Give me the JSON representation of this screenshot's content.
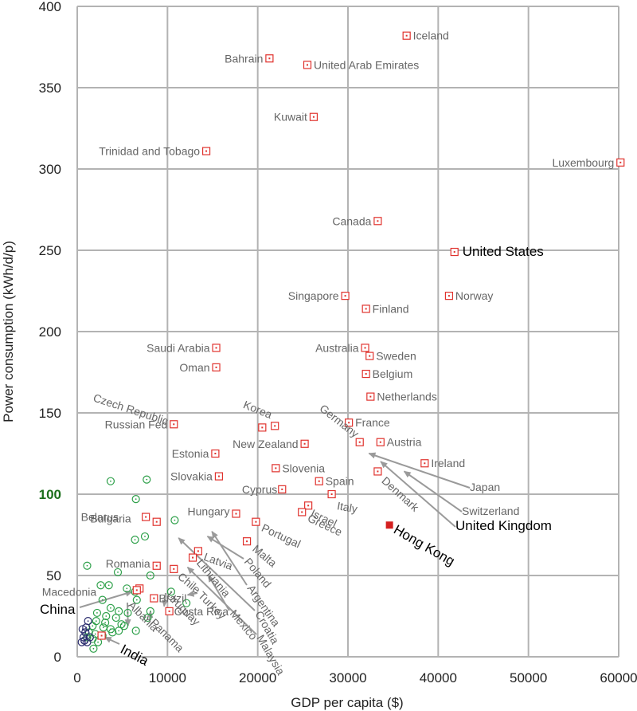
{
  "chart_data": {
    "type": "scatter",
    "xlabel": "GDP per capita ($)",
    "ylabel": "Power consumption (kWh/d/p)",
    "xlim": [
      0,
      60000
    ],
    "ylim": [
      0,
      400
    ],
    "xticks": [
      "0",
      "10000",
      "20000",
      "30000",
      "40000",
      "50000",
      "60000"
    ],
    "yticks": [
      "0",
      "50",
      "100",
      "150",
      "200",
      "250",
      "300",
      "350",
      "400"
    ],
    "highlighted_ytick": "100",
    "grid": true,
    "colors": {
      "labeled_marker": "#e0322d",
      "highlight_marker": "#d42020",
      "green_marker": "#2ea04a",
      "navy_marker": "#2b2d6e",
      "grid": "#b3b3b3",
      "leader": "#9a9a9a",
      "highlight_tick": "#1b6e1b"
    },
    "labeled_points": [
      {
        "name": "Iceland",
        "x": 36500,
        "y": 382
      },
      {
        "name": "Bahrain",
        "x": 21300,
        "y": 368
      },
      {
        "name": "United Arab Emirates",
        "x": 25500,
        "y": 364
      },
      {
        "name": "Kuwait",
        "x": 26200,
        "y": 332
      },
      {
        "name": "Trinidad and Tobago",
        "x": 14300,
        "y": 311
      },
      {
        "name": "Luxembourg",
        "x": 60200,
        "y": 304
      },
      {
        "name": "Canada",
        "x": 33300,
        "y": 268
      },
      {
        "name": "United States",
        "x": 41800,
        "y": 249,
        "highlight": true
      },
      {
        "name": "Singapore",
        "x": 29700,
        "y": 222
      },
      {
        "name": "Norway",
        "x": 41200,
        "y": 222
      },
      {
        "name": "Finland",
        "x": 32000,
        "y": 214
      },
      {
        "name": "Australia",
        "x": 31900,
        "y": 190
      },
      {
        "name": "Saudi Arabia",
        "x": 15400,
        "y": 190
      },
      {
        "name": "Sweden",
        "x": 32400,
        "y": 185
      },
      {
        "name": "Oman",
        "x": 15400,
        "y": 178
      },
      {
        "name": "Belgium",
        "x": 32000,
        "y": 174
      },
      {
        "name": "Netherlands",
        "x": 32500,
        "y": 160
      },
      {
        "name": "Russian Fed",
        "x": 10700,
        "y": 143
      },
      {
        "name": "France",
        "x": 30100,
        "y": 144
      },
      {
        "name": "Czech Republic",
        "x": 20500,
        "y": 141
      },
      {
        "name": "Korea",
        "x": 21900,
        "y": 142
      },
      {
        "name": "Germany",
        "x": 31300,
        "y": 132
      },
      {
        "name": "Austria",
        "x": 33600,
        "y": 132
      },
      {
        "name": "New Zealand",
        "x": 25200,
        "y": 131
      },
      {
        "name": "Estonia",
        "x": 15300,
        "y": 125
      },
      {
        "name": "Ireland",
        "x": 38500,
        "y": 119
      },
      {
        "name": "Slovenia",
        "x": 22000,
        "y": 116
      },
      {
        "name": "Slovakia",
        "x": 15700,
        "y": 111
      },
      {
        "name": "Spain",
        "x": 26800,
        "y": 108
      },
      {
        "name": "Denmark",
        "x": 33300,
        "y": 114
      },
      {
        "name": "Cyprus",
        "x": 22700,
        "y": 103
      },
      {
        "name": "Italy",
        "x": 28200,
        "y": 100
      },
      {
        "name": "Israel",
        "x": 25600,
        "y": 93
      },
      {
        "name": "Greece",
        "x": 24900,
        "y": 89
      },
      {
        "name": "Hungary",
        "x": 17600,
        "y": 88
      },
      {
        "name": "Belarus",
        "x": 7600,
        "y": 86
      },
      {
        "name": "Bulgaria",
        "x": 8800,
        "y": 83
      },
      {
        "name": "Portugal",
        "x": 19800,
        "y": 83
      },
      {
        "name": "Hong Kong",
        "x": 34600,
        "y": 81,
        "highlight": true
      },
      {
        "name": "Malta",
        "x": 18800,
        "y": 71
      },
      {
        "name": "Latvia",
        "x": 13400,
        "y": 65
      },
      {
        "name": "Lithuania",
        "x": 12800,
        "y": 61
      },
      {
        "name": "Romania",
        "x": 8800,
        "y": 56
      },
      {
        "name": "Chile",
        "x": 10700,
        "y": 54
      },
      {
        "name": "Macedonia",
        "x": 6900,
        "y": 42
      },
      {
        "name": "Brazil",
        "x": 8500,
        "y": 36
      },
      {
        "name": "Costa Rica",
        "x": 10200,
        "y": 28
      },
      {
        "name": "China",
        "x": 6600,
        "y": 41,
        "highlight": true
      },
      {
        "name": "India",
        "x": 2700,
        "y": 13,
        "highlight": true
      }
    ],
    "arrow_labels": [
      {
        "name": "Japan",
        "x": 31800,
        "y": 128
      },
      {
        "name": "Switzerland",
        "x": 35700,
        "y": 117
      },
      {
        "name": "United Kingdom",
        "x": 33100,
        "y": 123,
        "highlight": true
      },
      {
        "name": "Poland",
        "x": 13900,
        "y": 77
      },
      {
        "name": "Argentina",
        "x": 14400,
        "y": 80
      },
      {
        "name": "Croatia",
        "x": 10700,
        "y": 76
      },
      {
        "name": "Malaysia",
        "x": 11700,
        "y": 58
      },
      {
        "name": "Mexico",
        "x": 14000,
        "y": 53
      },
      {
        "name": "Turkey",
        "x": 11700,
        "y": 41
      },
      {
        "name": "Uruguay",
        "x": 9100,
        "y": 34
      },
      {
        "name": "Panama",
        "x": 7600,
        "y": 31
      },
      {
        "name": "Albania",
        "x": 5100,
        "y": 22
      }
    ],
    "green_points": [
      {
        "x": 3700,
        "y": 108
      },
      {
        "x": 7700,
        "y": 109
      },
      {
        "x": 6500,
        "y": 97
      },
      {
        "x": 10800,
        "y": 84
      },
      {
        "x": 6400,
        "y": 72
      },
      {
        "x": 7500,
        "y": 74
      },
      {
        "x": 1100,
        "y": 56
      },
      {
        "x": 4500,
        "y": 52
      },
      {
        "x": 8100,
        "y": 50
      },
      {
        "x": 2600,
        "y": 44
      },
      {
        "x": 5500,
        "y": 42
      },
      {
        "x": 3500,
        "y": 44
      },
      {
        "x": 6400,
        "y": 40
      },
      {
        "x": 10400,
        "y": 40
      },
      {
        "x": 2800,
        "y": 35
      },
      {
        "x": 6600,
        "y": 35
      },
      {
        "x": 12100,
        "y": 33
      },
      {
        "x": 3700,
        "y": 30
      },
      {
        "x": 4600,
        "y": 28
      },
      {
        "x": 5600,
        "y": 27
      },
      {
        "x": 8100,
        "y": 28
      },
      {
        "x": 2200,
        "y": 27
      },
      {
        "x": 3200,
        "y": 25
      },
      {
        "x": 4300,
        "y": 24
      },
      {
        "x": 7800,
        "y": 24
      },
      {
        "x": 2100,
        "y": 22
      },
      {
        "x": 3100,
        "y": 21
      },
      {
        "x": 4900,
        "y": 20
      },
      {
        "x": 1700,
        "y": 19
      },
      {
        "x": 2900,
        "y": 18
      },
      {
        "x": 3700,
        "y": 17
      },
      {
        "x": 4600,
        "y": 16
      },
      {
        "x": 6500,
        "y": 16
      },
      {
        "x": 1300,
        "y": 15
      },
      {
        "x": 2000,
        "y": 14
      },
      {
        "x": 2800,
        "y": 13
      },
      {
        "x": 1100,
        "y": 12
      },
      {
        "x": 1700,
        "y": 11
      },
      {
        "x": 2300,
        "y": 9
      },
      {
        "x": 1800,
        "y": 5
      },
      {
        "x": 5200,
        "y": 19
      },
      {
        "x": 3900,
        "y": 15
      }
    ],
    "navy_points": [
      {
        "x": 500,
        "y": 9
      },
      {
        "x": 800,
        "y": 10
      },
      {
        "x": 1100,
        "y": 9
      },
      {
        "x": 600,
        "y": 17
      },
      {
        "x": 900,
        "y": 15
      },
      {
        "x": 1200,
        "y": 22
      },
      {
        "x": 1400,
        "y": 12
      },
      {
        "x": 700,
        "y": 12
      },
      {
        "x": 1000,
        "y": 18
      }
    ]
  }
}
